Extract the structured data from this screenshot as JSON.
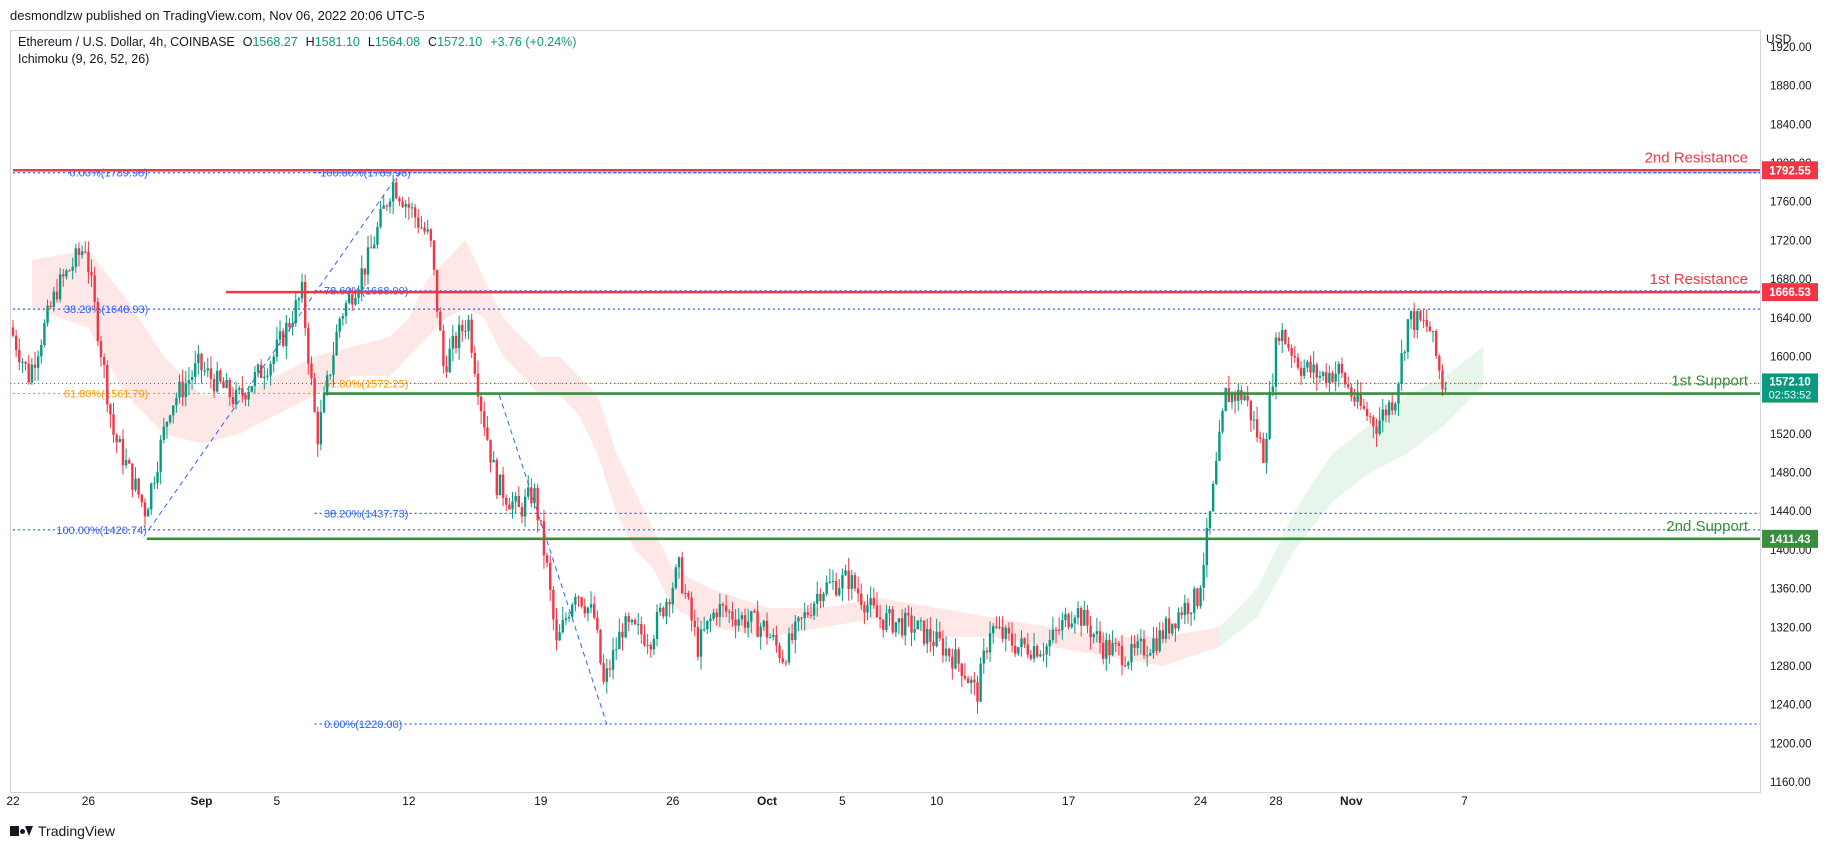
{
  "header": {
    "published": "desmondlzw published on TradingView.com, Nov 06, 2022 20:06 UTC-5"
  },
  "legend": {
    "symbol": "Ethereum / U.S. Dollar, 4h, COINBASE",
    "o_label": "O",
    "o_value": "1568.27",
    "h_label": "H",
    "h_value": "1581.10",
    "l_label": "L",
    "l_value": "1564.08",
    "c_label": "C",
    "c_value": "1572.10",
    "change": "+3.76 (+0.24%)",
    "indicator": "Ichimoku (9, 26, 52, 26)"
  },
  "price_axis": {
    "currency": "USD",
    "ticks": [
      1920,
      1880,
      1840,
      1800,
      1760,
      1720,
      1680,
      1640,
      1600,
      1560,
      1520,
      1480,
      1440,
      1400,
      1360,
      1320,
      1280,
      1240,
      1200,
      1160
    ]
  },
  "time_axis": {
    "ticks": [
      {
        "label": "22",
        "day": 0
      },
      {
        "label": "26",
        "day": 4
      },
      {
        "label": "Sep",
        "day": 10,
        "bold": true
      },
      {
        "label": "5",
        "day": 14
      },
      {
        "label": "12",
        "day": 21
      },
      {
        "label": "19",
        "day": 28
      },
      {
        "label": "26",
        "day": 35
      },
      {
        "label": "Oct",
        "day": 40,
        "bold": true
      },
      {
        "label": "5",
        "day": 44
      },
      {
        "label": "10",
        "day": 49
      },
      {
        "label": "17",
        "day": 56
      },
      {
        "label": "24",
        "day": 63
      },
      {
        "label": "28",
        "day": 67
      },
      {
        "label": "Nov",
        "day": 71,
        "bold": true
      },
      {
        "label": "7",
        "day": 77
      }
    ]
  },
  "levels": [
    {
      "name": "2nd Resistance",
      "label": "2nd Resistance",
      "price": 1792.55,
      "badge": "1792.55",
      "color": "#f23645",
      "from_day": 0
    },
    {
      "name": "1st Resistance",
      "label": "1st Resistance",
      "price": 1666.53,
      "badge": "1666.53",
      "color": "#f23645",
      "from_day": 11.3
    },
    {
      "name": "1st Support",
      "label": "1st Support",
      "price": 1561.62,
      "badge": "1561.62",
      "color": "#388e3c",
      "from_day": 16.5
    },
    {
      "name": "2nd Support",
      "label": "2nd Support",
      "price": 1411.43,
      "badge": "1411.43",
      "color": "#388e3c",
      "from_day": 7.1
    }
  ],
  "last_price": {
    "value": "1572.10",
    "countdown": "02:53:52",
    "color": "#089981",
    "price": 1572.1
  },
  "fib_sets": [
    {
      "from_day": 0,
      "color": "#2962ff",
      "lines": [
        {
          "text": "0.00%(1789.98)",
          "price": 1789.98,
          "label_day": 3
        },
        {
          "text": "38.20%(1648.93)",
          "price": 1648.93,
          "label_day": 2.7
        },
        {
          "text": "61.80%(1561.79)",
          "price": 1561.79,
          "label_day": 2.7,
          "color": "#ff9800"
        },
        {
          "text": "100.00%(1420.74)",
          "price": 1420.74,
          "label_day": 2.3
        }
      ]
    },
    {
      "from_day": 16,
      "color": "#2962ff",
      "lines": [
        {
          "text": "100.00%(1789.98)",
          "price": 1789.98,
          "label_day": 16.3
        },
        {
          "text": "78.60%(1668.00)",
          "price": 1668.0,
          "label_day": 16.5
        },
        {
          "text": "61.80%(1572.25)",
          "price": 1572.25,
          "label_day": 16.5,
          "color": "#ff9800"
        },
        {
          "text": "38.20%(1437.73)",
          "price": 1437.73,
          "label_day": 16.5
        },
        {
          "text": "0.00%(1220.00)",
          "price": 1220.0,
          "label_day": 16.5
        }
      ]
    }
  ],
  "chart_data": {
    "type": "candlestick",
    "symbol": "Ethereum / U.S. Dollar",
    "timeframe": "4h",
    "ylim": [
      1150,
      1925
    ],
    "x_start": "Aug 22, 2022",
    "candle_path": [
      {
        "day": 0,
        "price": 1630
      },
      {
        "day": 1,
        "price": 1580
      },
      {
        "day": 2.5,
        "price": 1670
      },
      {
        "day": 4,
        "price": 1715
      },
      {
        "day": 5.5,
        "price": 1520
      },
      {
        "day": 7.2,
        "price": 1440
      },
      {
        "day": 8.5,
        "price": 1550
      },
      {
        "day": 10,
        "price": 1590
      },
      {
        "day": 12,
        "price": 1555
      },
      {
        "day": 14,
        "price": 1600
      },
      {
        "day": 15.5,
        "price": 1665
      },
      {
        "day": 16.3,
        "price": 1515
      },
      {
        "day": 17.5,
        "price": 1640
      },
      {
        "day": 19,
        "price": 1700
      },
      {
        "day": 20.3,
        "price": 1780
      },
      {
        "day": 21,
        "price": 1760
      },
      {
        "day": 22.3,
        "price": 1720
      },
      {
        "day": 23,
        "price": 1590
      },
      {
        "day": 24.3,
        "price": 1640
      },
      {
        "day": 25,
        "price": 1550
      },
      {
        "day": 25.8,
        "price": 1470
      },
      {
        "day": 27,
        "price": 1440
      },
      {
        "day": 27.8,
        "price": 1460
      },
      {
        "day": 28.5,
        "price": 1380
      },
      {
        "day": 29,
        "price": 1300
      },
      {
        "day": 30,
        "price": 1360
      },
      {
        "day": 31,
        "price": 1330
      },
      {
        "day": 31.5,
        "price": 1260
      },
      {
        "day": 32.5,
        "price": 1320
      },
      {
        "day": 34,
        "price": 1310
      },
      {
        "day": 35.5,
        "price": 1380
      },
      {
        "day": 36.5,
        "price": 1300
      },
      {
        "day": 37.5,
        "price": 1340
      },
      {
        "day": 40,
        "price": 1320
      },
      {
        "day": 41,
        "price": 1290
      },
      {
        "day": 43,
        "price": 1360
      },
      {
        "day": 44.5,
        "price": 1370
      },
      {
        "day": 46,
        "price": 1330
      },
      {
        "day": 48,
        "price": 1320
      },
      {
        "day": 49.5,
        "price": 1300
      },
      {
        "day": 50.5,
        "price": 1280
      },
      {
        "day": 51.3,
        "price": 1250
      },
      {
        "day": 52,
        "price": 1320
      },
      {
        "day": 53.5,
        "price": 1300
      },
      {
        "day": 55,
        "price": 1300
      },
      {
        "day": 56.5,
        "price": 1340
      },
      {
        "day": 58,
        "price": 1300
      },
      {
        "day": 59.5,
        "price": 1290
      },
      {
        "day": 61,
        "price": 1310
      },
      {
        "day": 62.2,
        "price": 1340
      },
      {
        "day": 63,
        "price": 1350
      },
      {
        "day": 63.5,
        "price": 1410
      },
      {
        "day": 64.5,
        "price": 1560
      },
      {
        "day": 65.5,
        "price": 1560
      },
      {
        "day": 66.5,
        "price": 1500
      },
      {
        "day": 67.3,
        "price": 1630
      },
      {
        "day": 68.5,
        "price": 1590
      },
      {
        "day": 69.5,
        "price": 1580
      },
      {
        "day": 70.5,
        "price": 1585
      },
      {
        "day": 71.5,
        "price": 1550
      },
      {
        "day": 72.5,
        "price": 1530
      },
      {
        "day": 73.5,
        "price": 1560
      },
      {
        "day": 74.2,
        "price": 1640
      },
      {
        "day": 75.3,
        "price": 1630
      },
      {
        "day": 76,
        "price": 1572
      }
    ],
    "kumo_path": [
      {
        "day": 1,
        "a": 1650,
        "b": 1700
      },
      {
        "day": 4,
        "a": 1630,
        "b": 1710
      },
      {
        "day": 6,
        "a": 1560,
        "b": 1660
      },
      {
        "day": 8,
        "a": 1520,
        "b": 1600
      },
      {
        "day": 10,
        "a": 1510,
        "b": 1560
      },
      {
        "day": 12,
        "a": 1520,
        "b": 1560
      },
      {
        "day": 14,
        "a": 1540,
        "b": 1580
      },
      {
        "day": 16,
        "a": 1560,
        "b": 1600
      },
      {
        "day": 18,
        "a": 1580,
        "b": 1610
      },
      {
        "day": 20,
        "a": 1580,
        "b": 1620
      },
      {
        "day": 21,
        "a": 1600,
        "b": 1640
      },
      {
        "day": 22,
        "a": 1620,
        "b": 1680
      },
      {
        "day": 23,
        "a": 1640,
        "b": 1700
      },
      {
        "day": 24,
        "a": 1650,
        "b": 1720
      },
      {
        "day": 25,
        "a": 1640,
        "b": 1680
      },
      {
        "day": 26,
        "a": 1600,
        "b": 1640
      },
      {
        "day": 27,
        "a": 1580,
        "b": 1620
      },
      {
        "day": 28,
        "a": 1560,
        "b": 1600
      },
      {
        "day": 29,
        "a": 1560,
        "b": 1600
      },
      {
        "day": 30,
        "a": 1540,
        "b": 1580
      },
      {
        "day": 31,
        "a": 1500,
        "b": 1560
      },
      {
        "day": 32,
        "a": 1440,
        "b": 1500
      },
      {
        "day": 33,
        "a": 1400,
        "b": 1460
      },
      {
        "day": 34,
        "a": 1380,
        "b": 1420
      },
      {
        "day": 35,
        "a": 1340,
        "b": 1380
      },
      {
        "day": 37,
        "a": 1320,
        "b": 1360
      },
      {
        "day": 40,
        "a": 1310,
        "b": 1340
      },
      {
        "day": 43,
        "a": 1320,
        "b": 1340
      },
      {
        "day": 46,
        "a": 1330,
        "b": 1350
      },
      {
        "day": 49,
        "a": 1310,
        "b": 1340
      },
      {
        "day": 52,
        "a": 1310,
        "b": 1330
      },
      {
        "day": 55,
        "a": 1300,
        "b": 1320
      },
      {
        "day": 58,
        "a": 1290,
        "b": 1310
      },
      {
        "day": 61,
        "a": 1280,
        "b": 1310
      },
      {
        "day": 64,
        "a": 1300,
        "b": 1320
      },
      {
        "day": 66,
        "a": 1330,
        "b": 1360
      },
      {
        "day": 68,
        "a": 1400,
        "b": 1440
      },
      {
        "day": 70,
        "a": 1450,
        "b": 1500
      },
      {
        "day": 72,
        "a": 1480,
        "b": 1530
      },
      {
        "day": 74,
        "a": 1500,
        "b": 1560
      },
      {
        "day": 76,
        "a": 1530,
        "b": 1580
      },
      {
        "day": 78,
        "a": 1570,
        "b": 1610
      }
    ],
    "zigzag_1": [
      {
        "day": 7.2,
        "price": 1420.74
      },
      {
        "day": 20.5,
        "price": 1789.98
      }
    ],
    "zigzag_2": [
      {
        "day": 25.8,
        "price": 1560
      },
      {
        "day": 31.5,
        "price": 1220
      }
    ],
    "colors": {
      "up": "#089981",
      "down": "#f23645",
      "kumo_bear": "#fde3e3",
      "kumo_bull": "#e3f3e6"
    },
    "grid": false
  }
}
